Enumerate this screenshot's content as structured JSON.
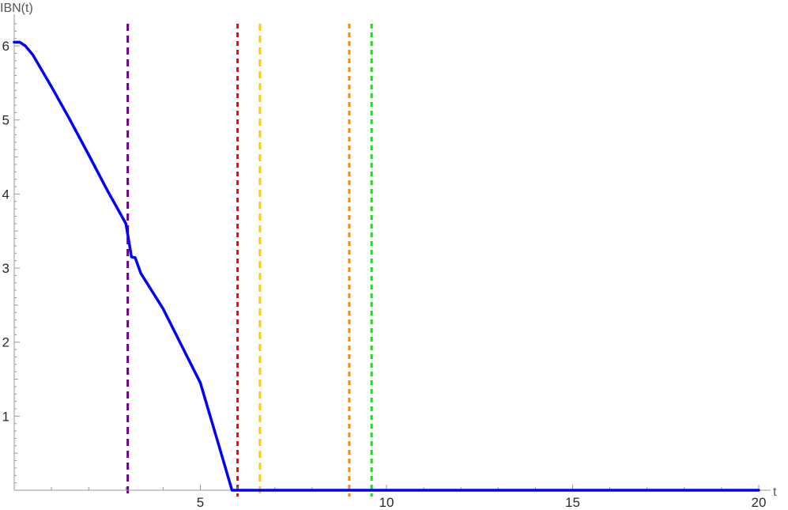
{
  "chart_data": {
    "type": "line",
    "title": "",
    "xlabel": "t",
    "ylabel": "IBN(t)",
    "xlim": [
      0,
      20
    ],
    "ylim": [
      0,
      6.3
    ],
    "x_ticks": [
      5,
      10,
      15,
      20
    ],
    "y_ticks": [
      1,
      2,
      3,
      4,
      5,
      6
    ],
    "grid": false,
    "series": [
      {
        "color": "#0000ff",
        "points": [
          [
            0,
            6.05
          ],
          [
            0.15,
            6.05
          ],
          [
            0.3,
            6.0
          ],
          [
            0.5,
            5.88
          ],
          [
            1,
            5.45
          ],
          [
            1.5,
            5.0
          ],
          [
            2,
            4.53
          ],
          [
            2.5,
            4.05
          ],
          [
            3.0,
            3.6
          ],
          [
            3.15,
            3.15
          ],
          [
            3.25,
            3.14
          ],
          [
            3.4,
            2.93
          ],
          [
            4.0,
            2.45
          ],
          [
            4.5,
            1.95
          ],
          [
            5.0,
            1.45
          ],
          [
            5.5,
            0.6
          ],
          [
            5.85,
            0.0
          ],
          [
            20,
            0.0
          ]
        ]
      }
    ],
    "vertical_lines": [
      {
        "x": 3.05,
        "color": "#6a0080",
        "style": "dashed"
      },
      {
        "x": 6.0,
        "color": "#ff0000",
        "style": "dashed"
      },
      {
        "x": 6.6,
        "color": "#ffcc00",
        "style": "dashed"
      },
      {
        "x": 9.0,
        "color": "#ff8800",
        "style": "dashed"
      },
      {
        "x": 9.6,
        "color": "#00ee00",
        "style": "dashed"
      }
    ]
  }
}
